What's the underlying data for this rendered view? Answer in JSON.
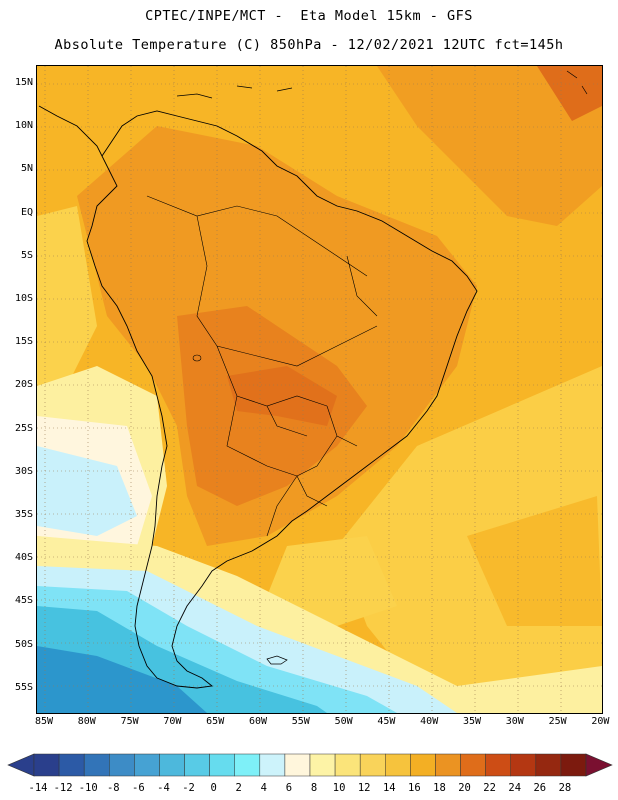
{
  "header": {
    "line1": "CPTEC/INPE/MCT -  Eta Model 15km - GFS",
    "line2": "Absolute Temperature (C) 850hPa - 12/02/2021 12UTC fct=145h"
  },
  "map": {
    "latitude_labels": [
      "15N",
      "10N",
      "5N",
      "EQ",
      "5S",
      "10S",
      "15S",
      "20S",
      "25S",
      "30S",
      "35S",
      "40S",
      "45S",
      "50S",
      "55S"
    ],
    "longitude_labels": [
      "85W",
      "80W",
      "75W",
      "70W",
      "65W",
      "60W",
      "55W",
      "50W",
      "45W",
      "40W",
      "35W",
      "30W",
      "25W",
      "20W"
    ],
    "field_colors": {
      "warm_core": "#e8821e",
      "orange": "#f09a22",
      "amber": "#f7b526",
      "yellow": "#fbd24c",
      "pale_yellow": "#fdf0a0",
      "cream": "#fff6de",
      "light_cyan": "#c9f1fb",
      "cyan": "#7fe3f6",
      "teal": "#47c2e0",
      "blue": "#2c96cc"
    }
  },
  "colorbar": {
    "labels": [
      "-14",
      "-12",
      "-10",
      "-8",
      "-6",
      "-4",
      "-2",
      "0",
      "2",
      "4",
      "6",
      "8",
      "10",
      "12",
      "14",
      "16",
      "18",
      "20",
      "22",
      "24",
      "26",
      "28"
    ],
    "colors": [
      "#2a3f8c",
      "#2c5aa6",
      "#3274b8",
      "#3d8cc6",
      "#46a2d3",
      "#4db8dc",
      "#58cbe6",
      "#66dcee",
      "#7ef0f8",
      "#cdf3fb",
      "#fff6dc",
      "#fdf3a6",
      "#fbe47a",
      "#f9d35a",
      "#f6c33d",
      "#f3af24",
      "#eb9322",
      "#df6d1a",
      "#cd4d15",
      "#b43712",
      "#952810",
      "#7c1a0e"
    ],
    "left_arrow_color": "#2a3f8c",
    "right_arrow_color": "#7a1030"
  }
}
